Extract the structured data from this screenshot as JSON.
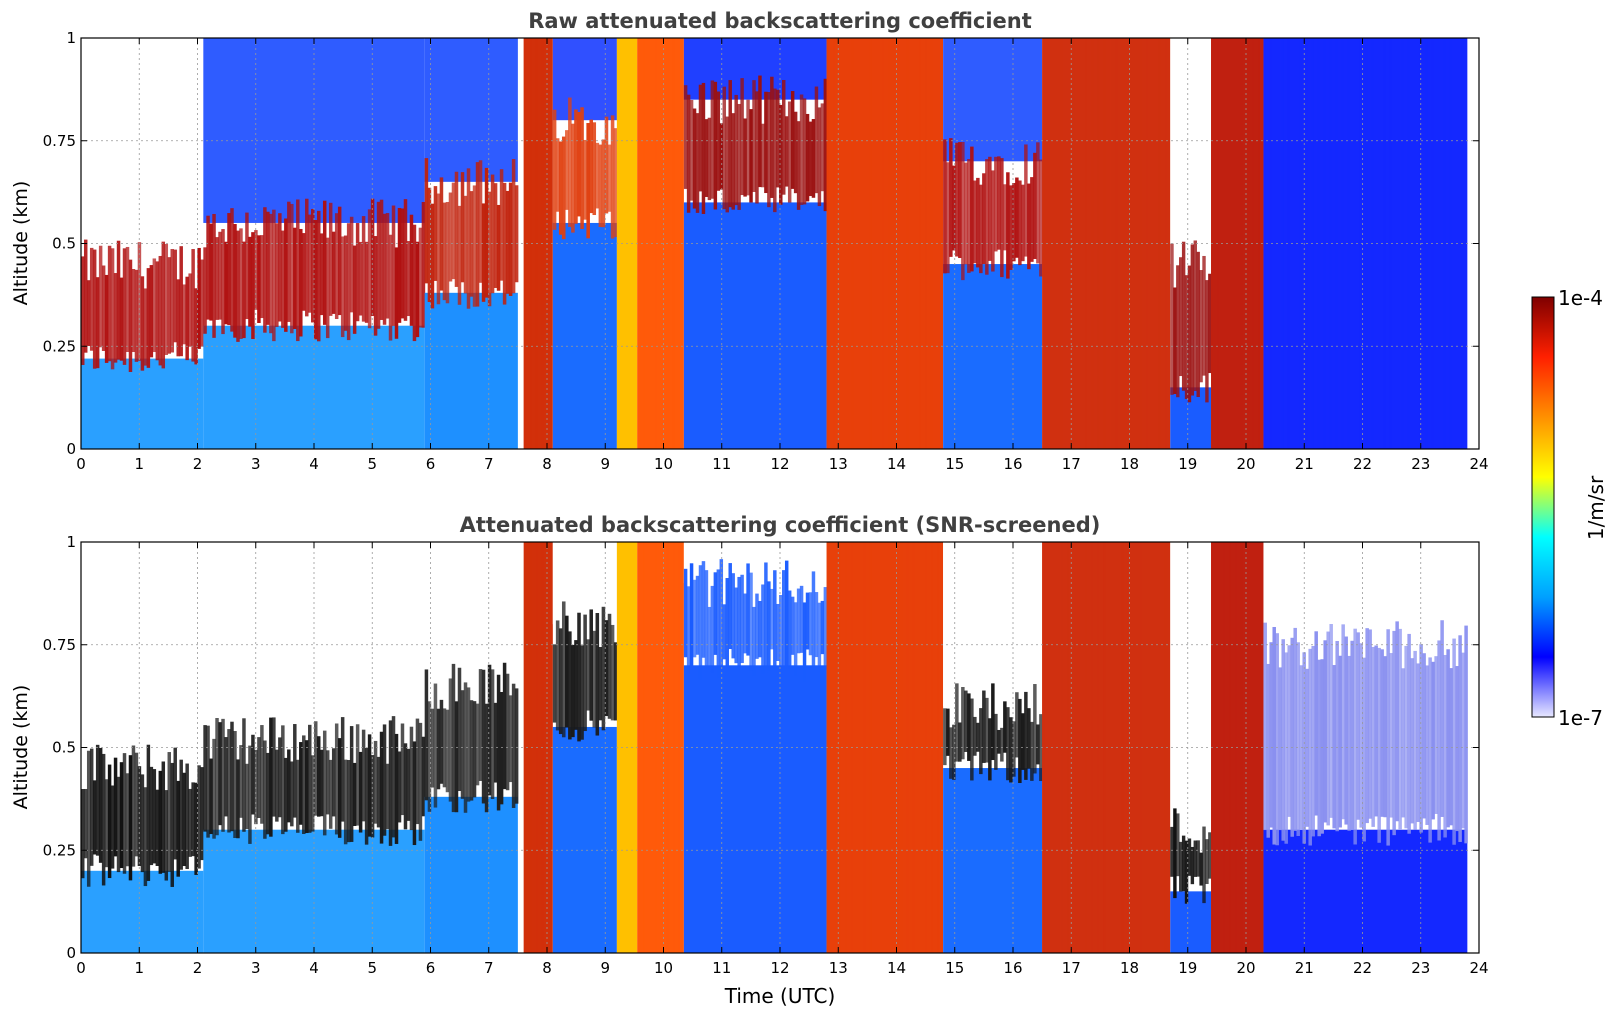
{
  "chart_data": [
    {
      "type": "heatmap",
      "title": "Raw attenuated backscattering coefficient",
      "xlabel": "",
      "ylabel": "Altitude (km)",
      "xlim": [
        0,
        24
      ],
      "ylim": [
        0,
        1
      ],
      "x_ticks": [
        "0",
        "1",
        "2",
        "3",
        "4",
        "5",
        "6",
        "7",
        "8",
        "9",
        "10",
        "11",
        "12",
        "13",
        "14",
        "15",
        "16",
        "17",
        "18",
        "19",
        "20",
        "21",
        "22",
        "23",
        "24"
      ],
      "y_ticks": [
        "0",
        "0.25",
        "0.5",
        "0.75",
        "1"
      ],
      "grid": true,
      "screened": false,
      "bands": [
        {
          "t0": 0.0,
          "t1": 2.1,
          "layer_base": 0.22,
          "layer_top": 0.45,
          "layer_color": "#b01010",
          "below_color": "#2aa0ff",
          "above_color": "#ffffff"
        },
        {
          "t0": 2.1,
          "t1": 5.9,
          "layer_base": 0.3,
          "layer_top": 0.55,
          "layer_color": "#b01010",
          "below_color": "#2aa0ff",
          "above_color": "#2f5cff"
        },
        {
          "t0": 5.9,
          "t1": 7.5,
          "layer_base": 0.38,
          "layer_top": 0.65,
          "layer_color": "#c0200a",
          "below_color": "#1e90ff",
          "above_color": "#2f5cff"
        },
        {
          "t0": 7.6,
          "t1": 8.1,
          "full_color": "#d2300a"
        },
        {
          "t0": 8.1,
          "t1": 9.2,
          "layer_base": 0.55,
          "layer_top": 0.8,
          "layer_color": "#e04010",
          "below_color": "#1a6cff",
          "above_color": "#3050ff"
        },
        {
          "t0": 9.2,
          "t1": 9.55,
          "full_color": "#ffc000"
        },
        {
          "t0": 9.55,
          "t1": 10.35,
          "full_color": "#ff5a0a"
        },
        {
          "t0": 10.35,
          "t1": 12.8,
          "layer_base": 0.6,
          "layer_top": 0.85,
          "layer_color": "#9b1010",
          "below_color": "#1a5cff",
          "above_color": "#2040ff"
        },
        {
          "t0": 12.8,
          "t1": 14.8,
          "full_color": "#e8400a"
        },
        {
          "t0": 14.8,
          "t1": 16.5,
          "layer_base": 0.45,
          "layer_top": 0.7,
          "layer_color": "#b01010",
          "below_color": "#1a6cff",
          "above_color": "#2f5cff"
        },
        {
          "t0": 16.5,
          "t1": 18.7,
          "full_color": "#d03010"
        },
        {
          "t0": 18.7,
          "t1": 19.4,
          "layer_base": 0.15,
          "layer_top": 0.45,
          "layer_color": "#9b1010",
          "below_color": "#1a5cff",
          "above_color": "#ffffff"
        },
        {
          "t0": 19.4,
          "t1": 20.3,
          "full_color": "#c02010"
        },
        {
          "t0": 20.3,
          "t1": 23.8,
          "full_color": "#1428ff"
        }
      ]
    },
    {
      "type": "heatmap",
      "title": "Attenuated backscattering coefficient (SNR-screened)",
      "xlabel": "Time (UTC)",
      "ylabel": "Altitude (km)",
      "xlim": [
        0,
        24
      ],
      "ylim": [
        0,
        1
      ],
      "x_ticks": [
        "0",
        "1",
        "2",
        "3",
        "4",
        "5",
        "6",
        "7",
        "8",
        "9",
        "10",
        "11",
        "12",
        "13",
        "14",
        "15",
        "16",
        "17",
        "18",
        "19",
        "20",
        "21",
        "22",
        "23",
        "24"
      ],
      "y_ticks": [
        "0",
        "0.25",
        "0.5",
        "0.75",
        "1"
      ],
      "grid": true,
      "screened": true,
      "bands": [
        {
          "t0": 0.0,
          "t1": 2.1,
          "layer_base": 0.2,
          "layer_top": 0.45,
          "layer_color": "#101010",
          "below_color": "#2aa0ff",
          "above_color": "#ffffff"
        },
        {
          "t0": 2.1,
          "t1": 5.9,
          "layer_base": 0.3,
          "layer_top": 0.52,
          "layer_color": "#181818",
          "below_color": "#2aa0ff",
          "above_color": "#ffffff"
        },
        {
          "t0": 5.9,
          "t1": 7.5,
          "layer_base": 0.38,
          "layer_top": 0.65,
          "layer_color": "#202020",
          "below_color": "#1e90ff",
          "above_color": "#ffffff"
        },
        {
          "t0": 7.6,
          "t1": 8.1,
          "full_color": "#d2300a"
        },
        {
          "t0": 8.1,
          "t1": 9.2,
          "layer_base": 0.55,
          "layer_top": 0.8,
          "layer_color": "#1a1a1a",
          "below_color": "#1a6cff",
          "above_color": "#ffffff"
        },
        {
          "t0": 9.2,
          "t1": 9.55,
          "full_color": "#ffc000"
        },
        {
          "t0": 9.55,
          "t1": 10.35,
          "full_color": "#ff5a0a"
        },
        {
          "t0": 10.35,
          "t1": 12.8,
          "layer_base": 0.7,
          "layer_top": 0.9,
          "layer_color": "#1a5cff",
          "below_color": "#1a5cff",
          "above_color": "#ffffff"
        },
        {
          "t0": 12.8,
          "t1": 14.8,
          "full_color": "#e8400a"
        },
        {
          "t0": 14.8,
          "t1": 16.5,
          "layer_base": 0.45,
          "layer_top": 0.6,
          "layer_color": "#181818",
          "below_color": "#1a6cff",
          "above_color": "#ffffff"
        },
        {
          "t0": 16.5,
          "t1": 18.7,
          "full_color": "#d03010"
        },
        {
          "t0": 18.7,
          "t1": 19.4,
          "layer_base": 0.15,
          "layer_top": 0.3,
          "layer_color": "#111111",
          "below_color": "#1a5cff",
          "above_color": "#ffffff"
        },
        {
          "t0": 19.4,
          "t1": 20.3,
          "full_color": "#c02010"
        },
        {
          "t0": 20.3,
          "t1": 23.8,
          "layer_base": 0.3,
          "layer_top": 0.75,
          "layer_color": "#8a90f0",
          "below_color": "#1428ff",
          "above_color": "#ffffff"
        }
      ]
    }
  ],
  "colorbar": {
    "label": "1/m/sr",
    "max_label": "1e-4",
    "min_label": "1e-7",
    "stops": [
      "#7f0000",
      "#ff2000",
      "#ff9000",
      "#ffff00",
      "#00ffff",
      "#00a0ff",
      "#0000ff",
      "#e8e8ff"
    ]
  }
}
